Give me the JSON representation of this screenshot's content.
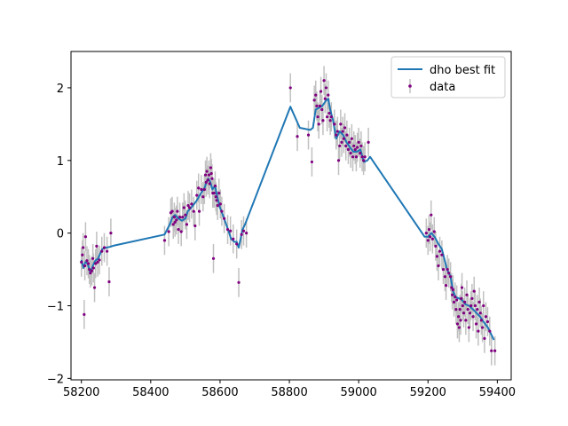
{
  "chart_data": {
    "type": "scatter",
    "title": "",
    "xlabel": "",
    "ylabel": "",
    "xlim": [
      58170,
      59440
    ],
    "ylim": [
      -2.02,
      2.5
    ],
    "xticks": [
      58200,
      58400,
      58600,
      58800,
      59000,
      59200,
      59400
    ],
    "yticks": [
      -2,
      -1,
      0,
      1,
      2
    ],
    "grid": false,
    "legend_position": "top-right",
    "legend": [
      {
        "label": "dho best fit",
        "kind": "line",
        "color": "#1f77b4"
      },
      {
        "label": "data",
        "kind": "errorbar-point",
        "color": "#800080"
      }
    ],
    "series": [
      {
        "name": "dho best fit",
        "kind": "line",
        "color": "#1f77b4",
        "points": [
          [
            58200,
            -0.37
          ],
          [
            58206,
            -0.48
          ],
          [
            58211,
            -0.4
          ],
          [
            58218,
            -0.42
          ],
          [
            58226,
            -0.55
          ],
          [
            58233,
            -0.45
          ],
          [
            58240,
            -0.38
          ],
          [
            58248,
            -0.35
          ],
          [
            58260,
            -0.22
          ],
          [
            58272,
            -0.2
          ],
          [
            58282,
            -0.19
          ],
          [
            58295,
            -0.17
          ],
          [
            58440,
            -0.02
          ],
          [
            58455,
            0.12
          ],
          [
            58463,
            0.22
          ],
          [
            58470,
            0.25
          ],
          [
            58480,
            0.2
          ],
          [
            58490,
            0.17
          ],
          [
            58500,
            0.2
          ],
          [
            58507,
            0.3
          ],
          [
            58513,
            0.33
          ],
          [
            58522,
            0.38
          ],
          [
            58533,
            0.45
          ],
          [
            58545,
            0.55
          ],
          [
            58555,
            0.62
          ],
          [
            58562,
            0.72
          ],
          [
            58566,
            0.75
          ],
          [
            58572,
            0.7
          ],
          [
            58578,
            0.6
          ],
          [
            58585,
            0.65
          ],
          [
            58592,
            0.5
          ],
          [
            58600,
            0.35
          ],
          [
            58612,
            0.2
          ],
          [
            58625,
            0.02
          ],
          [
            58632,
            -0.08
          ],
          [
            58642,
            -0.12
          ],
          [
            58648,
            -0.12
          ],
          [
            58654,
            -0.2
          ],
          [
            58665,
            0.05
          ],
          [
            58672,
            0.12
          ],
          [
            58803,
            1.74
          ],
          [
            58830,
            1.45
          ],
          [
            58860,
            1.42
          ],
          [
            58868,
            1.45
          ],
          [
            58876,
            1.7
          ],
          [
            58884,
            1.72
          ],
          [
            58895,
            1.75
          ],
          [
            58905,
            1.82
          ],
          [
            58912,
            1.85
          ],
          [
            58918,
            1.7
          ],
          [
            58926,
            1.55
          ],
          [
            58935,
            1.3
          ],
          [
            58945,
            1.4
          ],
          [
            58955,
            1.35
          ],
          [
            58965,
            1.25
          ],
          [
            58975,
            1.18
          ],
          [
            58985,
            1.12
          ],
          [
            58995,
            1.12
          ],
          [
            59005,
            1.15
          ],
          [
            59015,
            0.98
          ],
          [
            59025,
            1.0
          ],
          [
            59033,
            1.05
          ],
          [
            59190,
            -0.05
          ],
          [
            59200,
            -0.05
          ],
          [
            59210,
            0.0
          ],
          [
            59220,
            -0.06
          ],
          [
            59230,
            -0.15
          ],
          [
            59240,
            -0.22
          ],
          [
            59255,
            -0.5
          ],
          [
            59265,
            -0.6
          ],
          [
            59272,
            -0.8
          ],
          [
            59280,
            -0.88
          ],
          [
            59290,
            -0.9
          ],
          [
            59298,
            -0.92
          ],
          [
            59308,
            -0.98
          ],
          [
            59318,
            -1.0
          ],
          [
            59330,
            -1.05
          ],
          [
            59340,
            -1.1
          ],
          [
            59350,
            -1.15
          ],
          [
            59360,
            -1.22
          ],
          [
            59373,
            -1.3
          ],
          [
            59390,
            -1.47
          ]
        ]
      },
      {
        "name": "data",
        "kind": "errorbar-scatter",
        "color": "#800080",
        "errorbar_color": "#c0c0c0",
        "error": 0.2,
        "points": [
          [
            58200,
            -0.4
          ],
          [
            58203,
            -0.3
          ],
          [
            58205,
            -0.2
          ],
          [
            58208,
            -1.12
          ],
          [
            58210,
            -0.45
          ],
          [
            58212,
            -0.05
          ],
          [
            58216,
            -0.38
          ],
          [
            58220,
            -0.42
          ],
          [
            58223,
            -0.5
          ],
          [
            58226,
            -0.55
          ],
          [
            58230,
            -0.52
          ],
          [
            58233,
            -0.35
          ],
          [
            58235,
            -0.48
          ],
          [
            58238,
            -0.75
          ],
          [
            58241,
            -0.42
          ],
          [
            58244,
            -0.18
          ],
          [
            58247,
            -0.4
          ],
          [
            58252,
            -0.37
          ],
          [
            58259,
            -0.25
          ],
          [
            58266,
            -0.2
          ],
          [
            58274,
            -0.25
          ],
          [
            58280,
            -0.67
          ],
          [
            58285,
            0.0
          ],
          [
            58440,
            -0.1
          ],
          [
            58452,
            0.02
          ],
          [
            58458,
            0.28
          ],
          [
            58462,
            0.3
          ],
          [
            58465,
            0.12
          ],
          [
            58468,
            0.22
          ],
          [
            58470,
            0.15
          ],
          [
            58474,
            0.18
          ],
          [
            58477,
            0.3
          ],
          [
            58480,
            0.05
          ],
          [
            58484,
            0.22
          ],
          [
            58488,
            0.02
          ],
          [
            58492,
            0.22
          ],
          [
            58496,
            0.35
          ],
          [
            58500,
            0.25
          ],
          [
            58504,
            0.12
          ],
          [
            58508,
            0.38
          ],
          [
            58512,
            0.35
          ],
          [
            58518,
            0.4
          ],
          [
            58524,
            0.3
          ],
          [
            58528,
            0.1
          ],
          [
            58533,
            0.52
          ],
          [
            58538,
            0.62
          ],
          [
            58540,
            0.3
          ],
          [
            58546,
            0.6
          ],
          [
            58551,
            0.5
          ],
          [
            58555,
            0.6
          ],
          [
            58558,
            0.8
          ],
          [
            58560,
            0.7
          ],
          [
            58562,
            0.85
          ],
          [
            58565,
            0.73
          ],
          [
            58568,
            0.8
          ],
          [
            58570,
            0.68
          ],
          [
            58573,
            0.9
          ],
          [
            58575,
            0.82
          ],
          [
            58577,
            0.75
          ],
          [
            58579,
            0.55
          ],
          [
            58581,
            -0.35
          ],
          [
            58583,
            0.55
          ],
          [
            58586,
            0.65
          ],
          [
            58588,
            0.5
          ],
          [
            58590,
            0.45
          ],
          [
            58593,
            0.38
          ],
          [
            58597,
            0.55
          ],
          [
            58601,
            0.4
          ],
          [
            58605,
            0.3
          ],
          [
            58612,
            0.2
          ],
          [
            58622,
            0.05
          ],
          [
            58630,
            0.03
          ],
          [
            58638,
            -0.08
          ],
          [
            58648,
            -0.15
          ],
          [
            58654,
            -0.68
          ],
          [
            58662,
            -0.02
          ],
          [
            58668,
            0.03
          ],
          [
            58676,
            0.0
          ],
          [
            58803,
            2.0
          ],
          [
            58823,
            1.33
          ],
          [
            58855,
            1.35
          ],
          [
            58865,
            0.98
          ],
          [
            58872,
            1.83
          ],
          [
            58876,
            1.9
          ],
          [
            58879,
            1.75
          ],
          [
            58882,
            1.6
          ],
          [
            58885,
            1.5
          ],
          [
            58888,
            1.75
          ],
          [
            58891,
            1.95
          ],
          [
            58894,
            1.7
          ],
          [
            58897,
            1.55
          ],
          [
            58900,
            2.1
          ],
          [
            58903,
            1.85
          ],
          [
            58906,
            2.0
          ],
          [
            58909,
            1.6
          ],
          [
            58912,
            1.9
          ],
          [
            58915,
            1.65
          ],
          [
            58918,
            1.55
          ],
          [
            58921,
            1.6
          ],
          [
            58930,
            1.5
          ],
          [
            58935,
            1.35
          ],
          [
            58939,
            1.4
          ],
          [
            58942,
            1.0
          ],
          [
            58945,
            1.2
          ],
          [
            58948,
            1.5
          ],
          [
            58951,
            1.25
          ],
          [
            58954,
            1.4
          ],
          [
            58957,
            1.3
          ],
          [
            58960,
            1.45
          ],
          [
            58963,
            1.2
          ],
          [
            58966,
            1.35
          ],
          [
            58970,
            1.15
          ],
          [
            58973,
            1.25
          ],
          [
            58977,
            1.1
          ],
          [
            58980,
            1.3
          ],
          [
            58983,
            1.05
          ],
          [
            58986,
            1.2
          ],
          [
            58990,
            1.15
          ],
          [
            58993,
            1.05
          ],
          [
            58996,
            1.18
          ],
          [
            59000,
            1.25
          ],
          [
            59004,
            1.1
          ],
          [
            59007,
            1.2
          ],
          [
            59010,
            1.05
          ],
          [
            59014,
            1.0
          ],
          [
            59018,
            1.05
          ],
          [
            59028,
            1.25
          ],
          [
            59195,
            0.0
          ],
          [
            59200,
            -0.1
          ],
          [
            59203,
            0.05
          ],
          [
            59206,
            -0.05
          ],
          [
            59209,
            0.25
          ],
          [
            59213,
            -0.08
          ],
          [
            59218,
            0.02
          ],
          [
            59222,
            -0.18
          ],
          [
            59226,
            -0.32
          ],
          [
            59230,
            -0.45
          ],
          [
            59234,
            -0.25
          ],
          [
            59240,
            -0.3
          ],
          [
            59244,
            -0.5
          ],
          [
            59249,
            -0.6
          ],
          [
            59252,
            -0.72
          ],
          [
            59256,
            -0.5
          ],
          [
            59260,
            -0.55
          ],
          [
            59265,
            -0.6
          ],
          [
            59268,
            -0.75
          ],
          [
            59270,
            -0.85
          ],
          [
            59272,
            -0.78
          ],
          [
            59275,
            -0.95
          ],
          [
            59278,
            -0.88
          ],
          [
            59281,
            -1.05
          ],
          [
            59283,
            -0.92
          ],
          [
            59285,
            -1.25
          ],
          [
            59288,
            -1.15
          ],
          [
            59290,
            -1.3
          ],
          [
            59292,
            -1.05
          ],
          [
            59294,
            -1.2
          ],
          [
            59296,
            -0.9
          ],
          [
            59298,
            -0.75
          ],
          [
            59300,
            -1.0
          ],
          [
            59303,
            -1.1
          ],
          [
            59306,
            -0.95
          ],
          [
            59309,
            -1.2
          ],
          [
            59312,
            -0.85
          ],
          [
            59315,
            -1.05
          ],
          [
            59318,
            -1.3
          ],
          [
            59321,
            -1.1
          ],
          [
            59324,
            -1.0
          ],
          [
            59327,
            -0.9
          ],
          [
            59330,
            -1.15
          ],
          [
            59333,
            -0.8
          ],
          [
            59336,
            -1.0
          ],
          [
            59339,
            -1.25
          ],
          [
            59342,
            -1.05
          ],
          [
            59345,
            -1.35
          ],
          [
            59348,
            -0.95
          ],
          [
            59351,
            -1.1
          ],
          [
            59354,
            -1.2
          ],
          [
            59357,
            -1.3
          ],
          [
            59360,
            -1.0
          ],
          [
            59363,
            -1.45
          ],
          [
            59367,
            -1.15
          ],
          [
            59372,
            -1.22
          ],
          [
            59378,
            -1.35
          ],
          [
            59383,
            -1.62
          ],
          [
            59393,
            -1.62
          ]
        ]
      }
    ]
  }
}
